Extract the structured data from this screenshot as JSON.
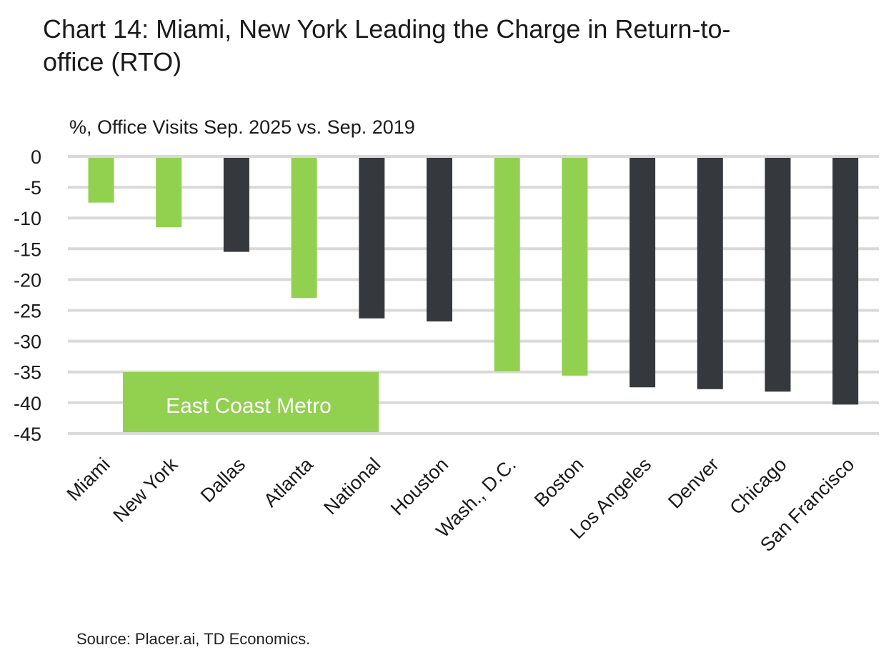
{
  "chart_data": {
    "type": "bar",
    "title": "Chart 14: Miami, New York Leading the Charge in Return-to-office (RTO)",
    "ylabel": "%, Office Visits Sep. 2025 vs. Sep. 2019",
    "xlabel": "",
    "ylim": [
      -45,
      0
    ],
    "yticks": [
      0,
      -5,
      -10,
      -15,
      -20,
      -25,
      -30,
      -35,
      -40,
      -45
    ],
    "grid": true,
    "categories": [
      "Miami",
      "New York",
      "Dallas",
      "Atlanta",
      "National",
      "Houston",
      "Wash., D.C.",
      "Boston",
      "Los Angeles",
      "Denver",
      "Chicago",
      "San Francisco"
    ],
    "values": [
      -7.5,
      -11.5,
      -15.5,
      -23.0,
      -26.3,
      -26.8,
      -34.9,
      -35.6,
      -37.5,
      -37.8,
      -38.2,
      -40.3
    ],
    "highlight": [
      true,
      true,
      false,
      true,
      false,
      false,
      true,
      true,
      false,
      false,
      false,
      false
    ],
    "legend": {
      "label": "East Coast Metro",
      "placement": "bottom-left"
    },
    "colors": {
      "east_coast": "#92D050",
      "other": "#35383C",
      "grid": "#D9D9D9"
    },
    "source": "Source: Placer.ai, TD Economics."
  }
}
